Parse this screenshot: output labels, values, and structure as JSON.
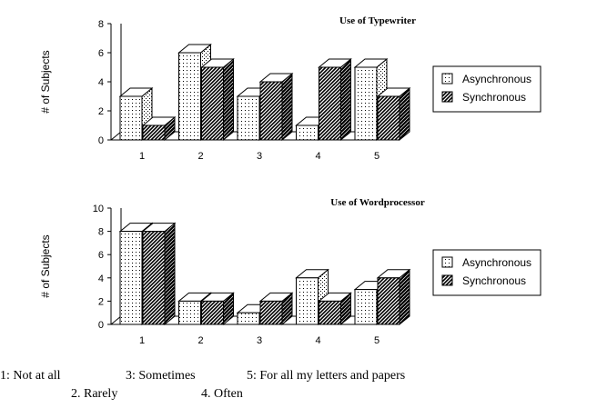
{
  "chart_data": [
    {
      "type": "bar",
      "title": "Use of Typewriter",
      "ylabel": "# of Subjects",
      "xlabel": "",
      "categories": [
        "1",
        "2",
        "3",
        "4",
        "5"
      ],
      "ylim": [
        0,
        8
      ],
      "yticks": [
        0,
        2,
        4,
        6,
        8
      ],
      "series": [
        {
          "name": "Asynchronous",
          "values": [
            3,
            6,
            3,
            1,
            5
          ]
        },
        {
          "name": "Synchronous",
          "values": [
            1,
            5,
            4,
            5,
            3
          ]
        }
      ],
      "legend": "right",
      "grid": false
    },
    {
      "type": "bar",
      "title": "Use of Wordprocessor",
      "ylabel": "# of Subjects",
      "xlabel": "",
      "categories": [
        "1",
        "2",
        "3",
        "4",
        "5"
      ],
      "ylim": [
        0,
        10
      ],
      "yticks": [
        0,
        2,
        4,
        6,
        8,
        10
      ],
      "series": [
        {
          "name": "Asynchronous",
          "values": [
            8,
            2,
            1,
            4,
            3
          ]
        },
        {
          "name": "Synchronous",
          "values": [
            8,
            2,
            2,
            2,
            4
          ]
        }
      ],
      "legend": "right",
      "grid": false
    }
  ],
  "footnote": {
    "line1": [
      "1: Not at all",
      "3: Sometimes",
      "5: For all my letters and papers"
    ],
    "line2": [
      "2. Rarely",
      "4. Often"
    ]
  }
}
